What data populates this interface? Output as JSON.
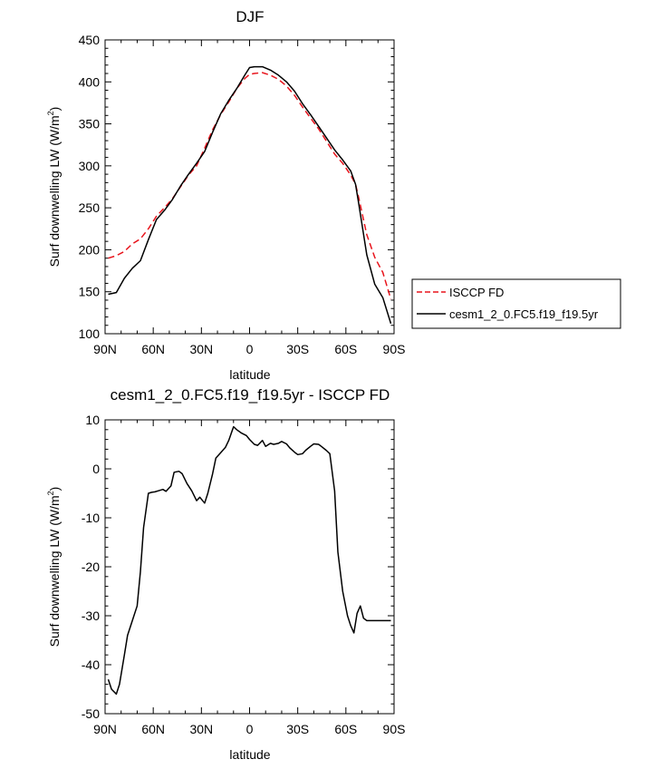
{
  "chart_data": [
    {
      "type": "line",
      "title": "DJF",
      "xlabel": "latitude",
      "ylabel": "Surf downwelling LW",
      "ylabel_units_prefix": "(W/m",
      "ylabel_units_exp": "2",
      "ylabel_units_suffix": ")",
      "xlim": [
        -90,
        90
      ],
      "ylim": [
        100,
        450
      ],
      "x_ticks": [
        -90,
        -60,
        -30,
        0,
        30,
        60,
        90
      ],
      "x_tick_labels": [
        "90N",
        "60N",
        "30N",
        "0",
        "30S",
        "60S",
        "90S"
      ],
      "y_ticks": [
        100,
        150,
        200,
        250,
        300,
        350,
        400,
        450
      ],
      "y_tick_labels": [
        "100",
        "150",
        "200",
        "250",
        "300",
        "350",
        "400",
        "450"
      ],
      "grid": false,
      "legend_placement": "right",
      "series": [
        {
          "name": "ISCCP FD",
          "color": "#e8141c",
          "dash": "dashed",
          "x": [
            -88,
            -83,
            -78,
            -73,
            -68,
            -63,
            -58,
            -53,
            -48,
            -43,
            -38,
            -33,
            -28,
            -23,
            -18,
            -13,
            -8,
            -3,
            0,
            3,
            8,
            13,
            18,
            23,
            28,
            33,
            38,
            43,
            48,
            53,
            58,
            63,
            66,
            68,
            73,
            78,
            83,
            88
          ],
          "y": [
            190,
            193,
            198,
            207,
            213,
            225,
            240,
            250,
            261,
            275,
            289,
            300,
            321,
            343,
            361,
            376,
            392,
            404,
            409,
            410,
            411,
            408,
            403,
            395,
            384,
            370,
            357,
            344,
            329,
            314,
            303,
            289,
            278,
            262,
            218,
            191,
            173,
            141
          ]
        },
        {
          "name": "cesm1_2_0.FC5.f19_f19.5yr",
          "color": "#000000",
          "dash": "solid",
          "x": [
            -88,
            -83,
            -78,
            -73,
            -68,
            -63,
            -58,
            -53,
            -48,
            -43,
            -38,
            -33,
            -28,
            -23,
            -18,
            -13,
            -8,
            -3,
            0,
            3,
            8,
            13,
            18,
            23,
            28,
            33,
            38,
            43,
            48,
            53,
            58,
            63,
            66,
            68,
            73,
            78,
            83,
            88
          ],
          "y": [
            147,
            149,
            166,
            178,
            187,
            212,
            236,
            247,
            260,
            276,
            290,
            303,
            317,
            340,
            362,
            378,
            392,
            408,
            417,
            418,
            418,
            414,
            408,
            400,
            389,
            374,
            361,
            347,
            333,
            319,
            307,
            294,
            278,
            255,
            194,
            159,
            143,
            112
          ]
        }
      ]
    },
    {
      "type": "line",
      "title": "cesm1_2_0.FC5.f19_f19.5yr - ISCCP FD",
      "xlabel": "latitude",
      "ylabel": "Surf downwelling LW",
      "ylabel_units_prefix": "(W/m",
      "ylabel_units_exp": "2",
      "ylabel_units_suffix": ")",
      "xlim": [
        -90,
        90
      ],
      "ylim": [
        -50,
        10
      ],
      "x_ticks": [
        -90,
        -60,
        -30,
        0,
        30,
        60,
        90
      ],
      "x_tick_labels": [
        "90N",
        "60N",
        "30N",
        "0",
        "30S",
        "60S",
        "90S"
      ],
      "y_ticks": [
        -50,
        -40,
        -30,
        -20,
        -10,
        0,
        10
      ],
      "y_tick_labels": [
        "-50",
        "-40",
        "-30",
        "-20",
        "-10",
        "0",
        "10"
      ],
      "grid": false,
      "series": [
        {
          "color": "#000000",
          "dash": "solid",
          "x": [
            -88,
            -86,
            -83,
            -81,
            -78,
            -76,
            -73,
            -70,
            -68,
            -66,
            -63,
            -61,
            -59,
            -57,
            -54,
            -52,
            -49,
            -47,
            -44,
            -42,
            -39,
            -36,
            -33,
            -31,
            -28,
            -26,
            -23,
            -21,
            -18,
            -15,
            -13,
            -10,
            -8,
            -5,
            -2,
            0,
            3,
            5,
            8,
            10,
            13,
            15,
            18,
            20,
            23,
            25,
            28,
            30,
            33,
            35,
            38,
            40,
            43,
            45,
            48,
            50,
            53,
            55,
            58,
            61,
            63,
            65,
            67,
            69,
            71,
            73,
            75,
            78,
            80,
            83,
            85,
            88
          ],
          "y": [
            -43,
            -45,
            -46,
            -44,
            -38,
            -34,
            -31,
            -28,
            -21,
            -12,
            -5,
            -4.8,
            -4.7,
            -4.5,
            -4.2,
            -4.6,
            -3.5,
            -0.7,
            -0.5,
            -1,
            -3,
            -4.5,
            -6.5,
            -5.8,
            -7,
            -5,
            -1,
            2.2,
            3.3,
            4.4,
            5.8,
            8.6,
            8,
            7.3,
            6.8,
            6,
            5,
            4.8,
            5.8,
            4.6,
            5.2,
            5,
            5.2,
            5.6,
            5.1,
            4.3,
            3.4,
            2.9,
            3.1,
            3.8,
            4.6,
            5.1,
            5,
            4.5,
            3.7,
            3.1,
            -4.5,
            -17,
            -25,
            -30,
            -32,
            -33.5,
            -29.5,
            -28,
            -30.5,
            -31,
            -31,
            -31,
            -31,
            -31,
            -31,
            -31
          ]
        }
      ]
    }
  ]
}
